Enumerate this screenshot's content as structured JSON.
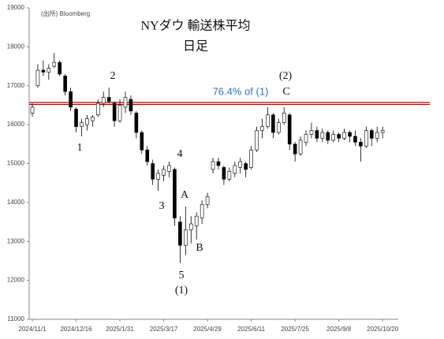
{
  "chart_data": {
    "type": "candlestick",
    "title": "NYダウ 輸送株平均",
    "subtitle": "日足",
    "source": "(出所) Bloomberg",
    "categories": [
      "2024/11/1",
      null,
      null,
      null,
      null,
      null,
      null,
      null,
      "2024/12/16",
      null,
      null,
      null,
      null,
      null,
      null,
      null,
      "2025/1/31",
      null,
      null,
      null,
      null,
      null,
      null,
      null,
      "2025/3/17",
      null,
      null,
      null,
      null,
      null,
      null,
      null,
      "2025/4/29",
      null,
      null,
      null,
      null,
      null,
      null,
      null,
      "2025/6/11",
      null,
      null,
      null,
      null,
      null,
      null,
      null,
      "2025/7/25",
      null,
      null,
      null,
      null,
      null,
      null,
      null,
      "2025/9/8",
      null,
      null,
      null,
      null,
      null,
      null,
      null,
      "2025/10/20"
    ],
    "open": [
      16300,
      17000,
      17400,
      17350,
      17500,
      17600,
      17250,
      16850,
      16400,
      15950,
      16000,
      16100,
      16250,
      16550,
      16700,
      16550,
      16100,
      16450,
      16650,
      16300,
      15800,
      15350,
      15000,
      14600,
      14700,
      14800,
      14850,
      13500,
      12900,
      13300,
      13400,
      13600,
      13950,
      14850,
      15050,
      14900,
      14600,
      14750,
      14900,
      15000,
      14900,
      15350,
      15850,
      15950,
      16250,
      15800,
      16050,
      16250,
      15500,
      15250,
      15550,
      15750,
      15850,
      15650,
      15800,
      15600,
      15750,
      15650,
      15800,
      15700,
      15550,
      15450,
      15850,
      15650,
      15800
    ],
    "high": [
      16550,
      17550,
      17650,
      17550,
      17850,
      17650,
      17300,
      16950,
      16450,
      16150,
      16250,
      16250,
      16650,
      16850,
      16950,
      16600,
      16650,
      16850,
      16750,
      16350,
      15850,
      15450,
      15100,
      14850,
      14950,
      15050,
      14900,
      13650,
      13900,
      13650,
      13750,
      14050,
      14250,
      15150,
      15150,
      14950,
      14900,
      15050,
      15150,
      15050,
      15450,
      15950,
      16150,
      16450,
      16300,
      16150,
      16450,
      16300,
      15550,
      15700,
      15850,
      16050,
      15950,
      15900,
      15850,
      15850,
      15800,
      15900,
      15850,
      15850,
      15650,
      15950,
      15900,
      15950,
      15950
    ],
    "low": [
      16200,
      16950,
      17250,
      17150,
      17450,
      17250,
      16750,
      16350,
      15800,
      15700,
      15850,
      15950,
      16200,
      16450,
      16550,
      15950,
      16050,
      16300,
      16250,
      15650,
      15250,
      14950,
      14450,
      14300,
      14550,
      14650,
      13400,
      12450,
      12650,
      12950,
      13050,
      13450,
      13850,
      14750,
      14850,
      14450,
      14550,
      14650,
      14750,
      14650,
      14850,
      15300,
      15650,
      15900,
      15650,
      15750,
      16000,
      15350,
      15050,
      15200,
      15450,
      15650,
      15550,
      15550,
      15500,
      15550,
      15550,
      15600,
      15550,
      15450,
      15050,
      15400,
      15450,
      15550,
      15650
    ],
    "close": [
      16450,
      17400,
      17350,
      17450,
      17600,
      17300,
      16850,
      16450,
      15950,
      16050,
      16150,
      16200,
      16550,
      16700,
      16600,
      16100,
      16500,
      16700,
      16350,
      15800,
      15350,
      15050,
      14600,
      14750,
      14850,
      14950,
      13600,
      12900,
      13300,
      13450,
      13650,
      13950,
      14150,
      15050,
      14950,
      14600,
      14800,
      14950,
      15050,
      14850,
      15350,
      15850,
      15950,
      16250,
      15800,
      16050,
      16300,
      15500,
      15250,
      15600,
      15750,
      15850,
      15650,
      15800,
      15600,
      15750,
      15650,
      15800,
      15700,
      15550,
      15450,
      15850,
      15650,
      15800,
      15850
    ],
    "up_color": "#ffffff",
    "down_color": "#000000",
    "edge_color": "#000000",
    "ylim": [
      11000,
      19000
    ],
    "yticks": [
      11000,
      12000,
      13000,
      14000,
      15000,
      16000,
      17000,
      18000,
      19000
    ],
    "hline": {
      "value": 16550,
      "label": "76.4% of (1)",
      "color": "#c00000",
      "label_color": "#2e75b6"
    },
    "annotations": [
      "1",
      "2",
      "3",
      "4",
      "5",
      "(1)",
      "A",
      "B",
      "(2)",
      "C"
    ]
  }
}
